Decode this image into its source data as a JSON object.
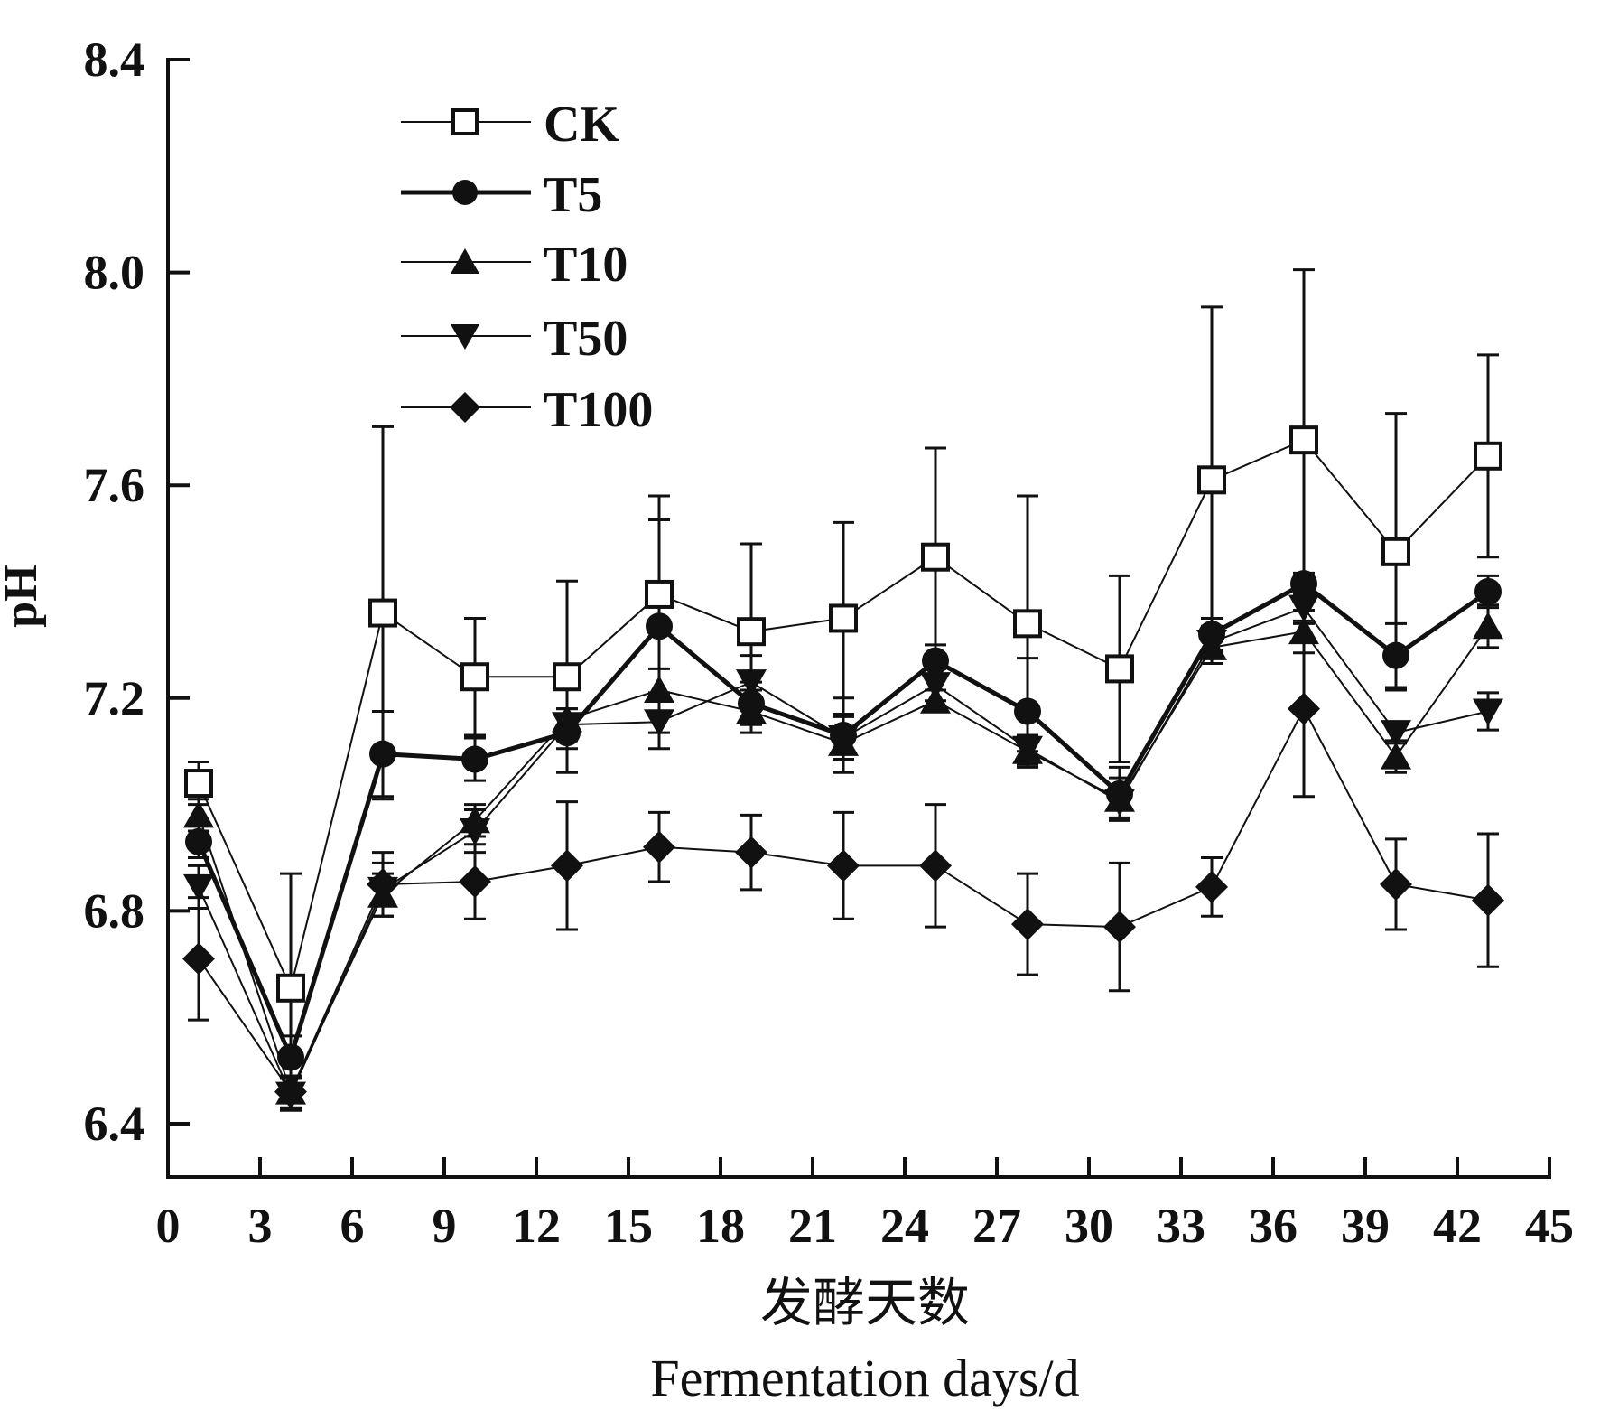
{
  "chart_data": {
    "type": "line",
    "title": "",
    "xlabel": "Fermentation days/d",
    "xlabel_cn": "发酵天数",
    "ylabel": "pH",
    "xlim": [
      0,
      45
    ],
    "ylim": [
      6.3,
      8.4
    ],
    "xticks": [
      0,
      3,
      6,
      9,
      12,
      15,
      18,
      21,
      24,
      27,
      30,
      33,
      36,
      39,
      42,
      45
    ],
    "yticks": [
      6.4,
      6.8,
      7.2,
      7.6,
      8.0,
      8.4
    ],
    "ytick_labels": [
      "6.4",
      "6.8",
      "7.2",
      "7.6",
      "8.0",
      "8.4"
    ],
    "grid": false,
    "legend_position": "top-left",
    "error_bars": true,
    "x": [
      1,
      4,
      7,
      10,
      13,
      16,
      19,
      22,
      25,
      28,
      31,
      34,
      37,
      40,
      43
    ],
    "series": [
      {
        "name": "CK",
        "marker": "open-square",
        "values": [
          7.04,
          6.655,
          7.36,
          7.24,
          7.24,
          7.395,
          7.325,
          7.35,
          7.465,
          7.34,
          7.255,
          7.61,
          7.685,
          7.475,
          7.655
        ],
        "errors": [
          0.04,
          0.215,
          0.35,
          0.11,
          0.18,
          0.185,
          0.165,
          0.18,
          0.205,
          0.24,
          0.175,
          0.325,
          0.32,
          0.26,
          0.19
        ]
      },
      {
        "name": "T5",
        "marker": "filled-circle",
        "values": [
          6.93,
          6.525,
          7.095,
          7.085,
          7.135,
          7.335,
          7.19,
          7.13,
          7.27,
          7.175,
          7.02,
          7.32,
          7.415,
          7.28,
          7.4
        ],
        "errors": [
          0.03,
          0.04,
          0.08,
          0.04,
          0.03,
          0.2,
          0.04,
          0.07,
          0.03,
          0.1,
          0.05,
          0.03,
          0.02,
          0.06,
          0.03
        ]
      },
      {
        "name": "T10",
        "marker": "filled-triangle-up",
        "values": [
          6.98,
          6.46,
          6.83,
          6.97,
          7.16,
          7.215,
          7.175,
          7.115,
          7.195,
          7.1,
          7.01,
          7.295,
          7.325,
          7.09,
          7.335
        ],
        "errors": [
          0.03,
          0.03,
          0.04,
          0.03,
          0.02,
          0.04,
          0.04,
          0.03,
          0.02,
          0.03,
          0.04,
          0.03,
          0.04,
          0.03,
          0.04
        ]
      },
      {
        "name": "T50",
        "marker": "filled-triangle-down",
        "values": [
          6.845,
          6.455,
          6.84,
          6.95,
          7.15,
          7.155,
          7.23,
          7.125,
          7.225,
          7.105,
          7.005,
          7.305,
          7.37,
          7.135,
          7.175
        ],
        "errors": [
          0.04,
          0.03,
          0.05,
          0.04,
          0.03,
          0.05,
          0.05,
          0.04,
          0.03,
          0.02,
          0.03,
          0.03,
          0.03,
          0.02,
          0.035
        ]
      },
      {
        "name": "T100",
        "marker": "filled-diamond",
        "values": [
          6.71,
          6.46,
          6.85,
          6.855,
          6.885,
          6.92,
          6.91,
          6.885,
          6.885,
          6.775,
          6.77,
          6.845,
          7.18,
          6.85,
          6.82
        ],
        "errors": [
          0.115,
          0.03,
          0.06,
          0.07,
          0.12,
          0.065,
          0.07,
          0.1,
          0.115,
          0.095,
          0.12,
          0.055,
          0.165,
          0.085,
          0.125
        ]
      }
    ],
    "colors": {
      "ink": "#111111",
      "background": "#ffffff"
    }
  }
}
